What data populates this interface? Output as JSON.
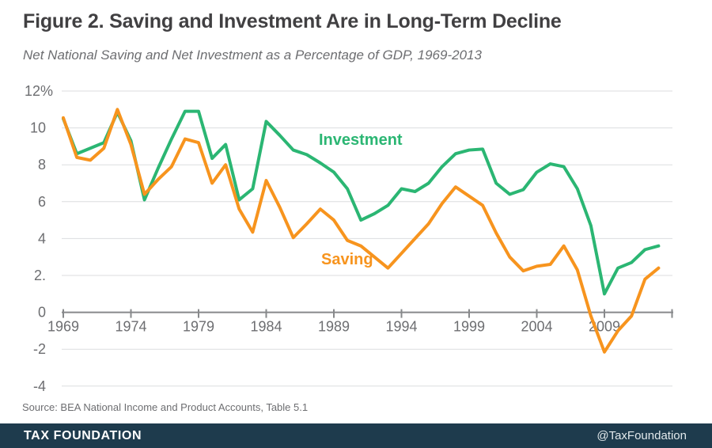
{
  "header": {
    "title": "Figure 2. Saving and Investment Are in Long-Term Decline",
    "subtitle": "Net National Saving and Net Investment as a Percentage of GDP, 1969-2013"
  },
  "theme": {
    "green": "#2bb673",
    "orange": "#f7941e",
    "navy": "#1e3b4d"
  },
  "chart_data": {
    "type": "line",
    "title": "Figure 2. Saving and Investment Are in Long-Term Decline",
    "subtitle": "Net National Saving and Net Investment as a Percentage of GDP, 1969-2013",
    "xlabel": "",
    "ylabel": "",
    "grid": "horizontal",
    "legend_position": "inline-labels",
    "ylim": [
      -4,
      12
    ],
    "xlim": [
      1969,
      2014
    ],
    "yticks": [
      {
        "value": 12,
        "label": "12%"
      },
      {
        "value": 10,
        "label": "10"
      },
      {
        "value": 8,
        "label": "8"
      },
      {
        "value": 6,
        "label": "6"
      },
      {
        "value": 4,
        "label": "4"
      },
      {
        "value": 2,
        "label": "2."
      },
      {
        "value": 0,
        "label": "0"
      },
      {
        "value": -2,
        "label": "-2"
      },
      {
        "value": -4,
        "label": "-4"
      }
    ],
    "xticks": [
      1969,
      1974,
      1979,
      1984,
      1989,
      1994,
      1999,
      2004,
      2009
    ],
    "end_tick": 2014,
    "years": [
      1969,
      1970,
      1971,
      1972,
      1973,
      1974,
      1975,
      1976,
      1977,
      1978,
      1979,
      1980,
      1981,
      1982,
      1983,
      1984,
      1985,
      1986,
      1987,
      1988,
      1989,
      1990,
      1991,
      1992,
      1993,
      1994,
      1995,
      1996,
      1997,
      1998,
      1999,
      2000,
      2001,
      2002,
      2003,
      2004,
      2005,
      2006,
      2007,
      2008,
      2009,
      2010,
      2011,
      2012,
      2013
    ],
    "series": [
      {
        "name": "Investment",
        "color": "#2bb673",
        "values": [
          10.5,
          8.6,
          8.9,
          9.2,
          10.85,
          9.3,
          6.1,
          7.8,
          9.4,
          10.9,
          10.9,
          8.35,
          9.1,
          6.1,
          6.7,
          10.35,
          9.6,
          8.8,
          8.55,
          8.1,
          7.6,
          6.7,
          5.0,
          5.35,
          5.8,
          6.7,
          6.55,
          7.0,
          7.9,
          8.6,
          8.8,
          8.85,
          7.0,
          6.4,
          6.65,
          7.6,
          8.05,
          7.9,
          6.7,
          4.7,
          1.0,
          2.4,
          2.7,
          3.4,
          3.6
        ]
      },
      {
        "name": "Saving",
        "color": "#f7941e",
        "values": [
          10.55,
          8.4,
          8.25,
          8.9,
          11.0,
          9.1,
          6.4,
          7.2,
          7.9,
          9.4,
          9.2,
          7.0,
          8.0,
          5.6,
          4.35,
          7.15,
          5.7,
          4.05,
          4.8,
          5.6,
          5.0,
          3.9,
          3.6,
          3.0,
          2.4,
          3.2,
          4.0,
          4.8,
          5.9,
          6.8,
          6.3,
          5.8,
          4.3,
          3.0,
          2.25,
          2.5,
          2.6,
          3.6,
          2.3,
          -0.2,
          -2.15,
          -1.0,
          -0.2,
          1.8,
          2.4
        ]
      }
    ]
  },
  "footer": {
    "source": "Source: BEA National Income and Product Accounts, Table 5.1",
    "brand": "TAX FOUNDATION",
    "handle": "@TaxFoundation"
  }
}
